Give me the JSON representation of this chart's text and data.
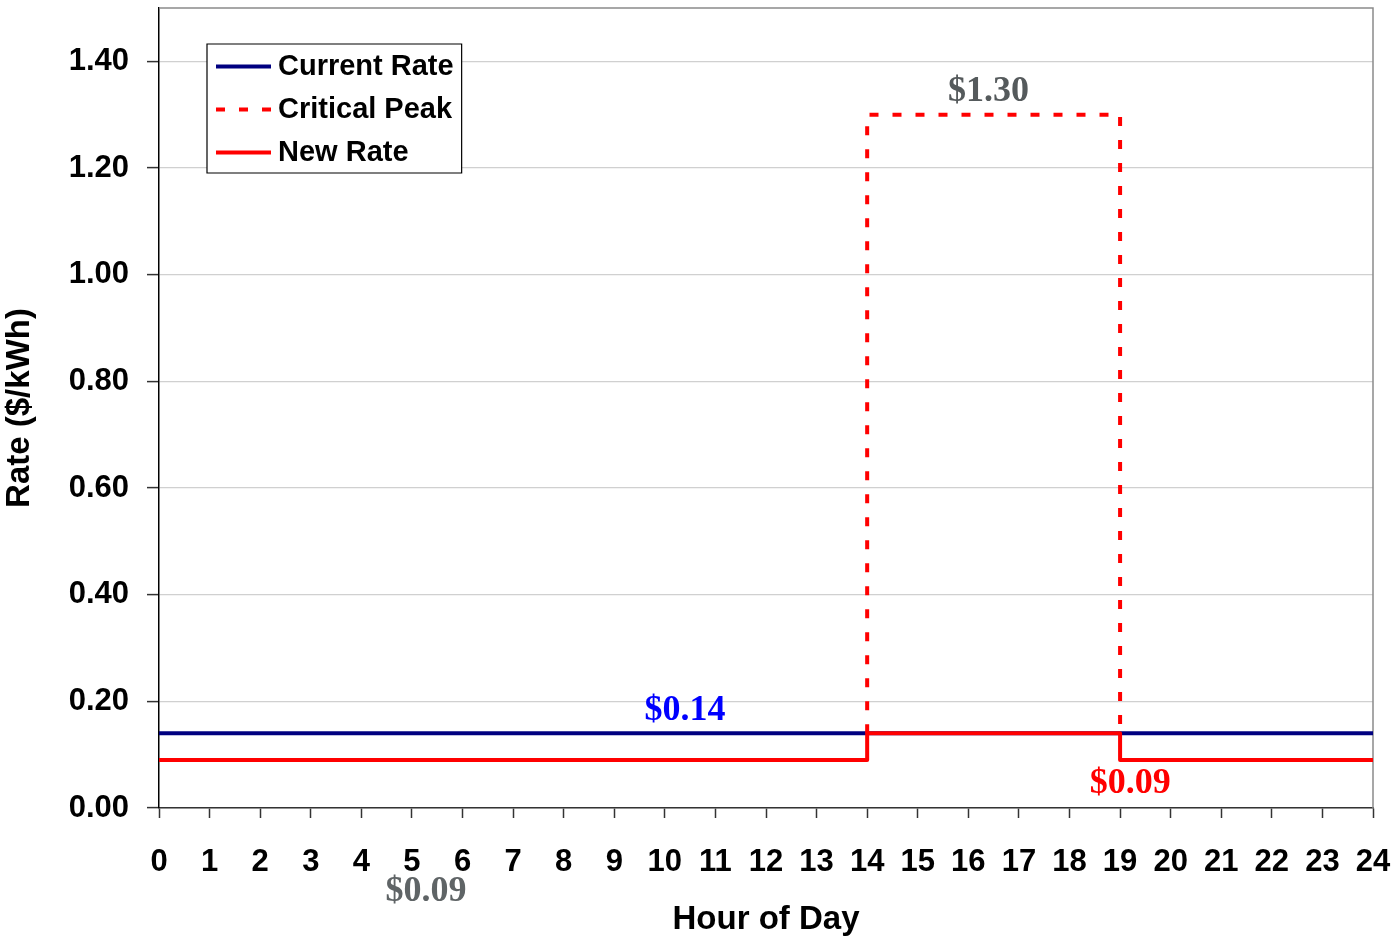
{
  "chart_data": {
    "type": "line",
    "xlabel": "Hour of Day",
    "ylabel": "Rate ($/kWh)",
    "series": [
      {
        "name": "Current Rate",
        "color": "#000080",
        "x": [
          0,
          24
        ],
        "values": [
          0.14,
          0.14
        ]
      },
      {
        "name": "Critical Peak",
        "color": "#ff0000",
        "line_style": "dotted",
        "x": [
          14,
          14,
          19,
          19
        ],
        "values": [
          0.14,
          1.3,
          1.3,
          0.14
        ]
      },
      {
        "name": "New Rate",
        "color": "#ff0000",
        "x": [
          0,
          14,
          14,
          19,
          19,
          24
        ],
        "values": [
          0.09,
          0.09,
          0.14,
          0.14,
          0.09,
          0.09
        ]
      }
    ],
    "xlim": [
      0,
      24
    ],
    "xticks": [
      0,
      1,
      2,
      3,
      4,
      5,
      6,
      7,
      8,
      9,
      10,
      11,
      12,
      13,
      14,
      15,
      16,
      17,
      18,
      19,
      20,
      21,
      22,
      23,
      24
    ],
    "ylim": [
      0,
      1.5
    ],
    "yticks": [
      {
        "value": 0,
        "label": "0.00"
      },
      {
        "value": 0.2,
        "label": "0.20"
      },
      {
        "value": 0.4,
        "label": "0.40"
      },
      {
        "value": 0.6,
        "label": "0.60"
      },
      {
        "value": 0.8,
        "label": "0.80"
      },
      {
        "value": 1,
        "label": "1.00"
      },
      {
        "value": 1.2,
        "label": "1.20"
      },
      {
        "value": 1.4,
        "label": "1.40"
      }
    ],
    "annotations": [
      {
        "text": "$1.30",
        "x": 16.4,
        "y": 1.3
      },
      {
        "text": "$0.14",
        "x": 10.4,
        "y": 0.14
      },
      {
        "text": "$0.09",
        "x": 19.2,
        "y": 0.09
      },
      "$0.09"
    ],
    "grid": "y",
    "legend": "top left",
    "line_style": "solid"
  }
}
